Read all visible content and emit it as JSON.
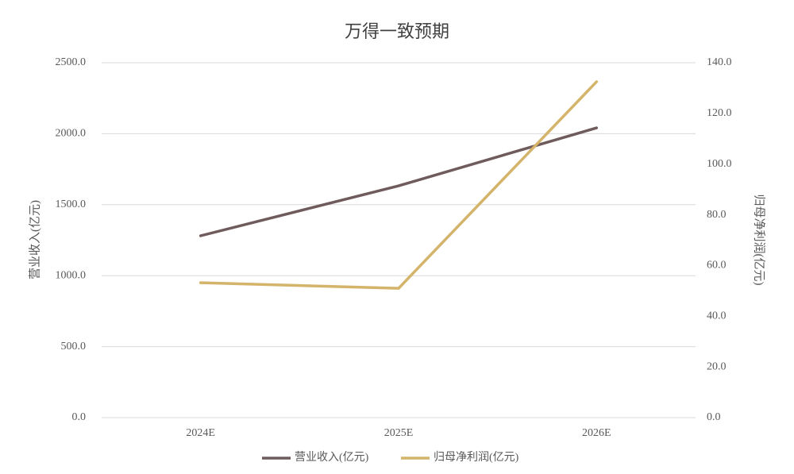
{
  "chart_data": {
    "type": "line",
    "title": "万得一致预期",
    "categories": [
      "2024E",
      "2025E",
      "2026E"
    ],
    "series": [
      {
        "name": "营业收入(亿元)",
        "color": "#6f5b5b",
        "values": [
          1281,
          1633,
          2041
        ]
      },
      {
        "name": "归母净利润(亿元)",
        "color": "#d4b36a",
        "axis": "y2",
        "values": [
          53.2,
          51.0,
          132.5
        ]
      }
    ],
    "y_label": "营业收入(亿元)",
    "y2_label": "归母净利润(亿元)",
    "ylim": [
      0,
      2500
    ],
    "yticks": [
      {
        "value": 0,
        "label": "0.0"
      },
      {
        "value": 500,
        "label": "500.0"
      },
      {
        "value": 1000,
        "label": "1000.0"
      },
      {
        "value": 1500,
        "label": "1500.0"
      },
      {
        "value": 2000,
        "label": "2000.0"
      },
      {
        "value": 2500,
        "label": "2500.0"
      }
    ],
    "y2lim": [
      0,
      140
    ],
    "y2ticks": [
      {
        "value": 0,
        "label": "0.0"
      },
      {
        "value": 20,
        "label": "20.0"
      },
      {
        "value": 40,
        "label": "40.0"
      },
      {
        "value": 60,
        "label": "60.0"
      },
      {
        "value": 80,
        "label": "80.0"
      },
      {
        "value": 100,
        "label": "100.0"
      },
      {
        "value": 120,
        "label": "120.0"
      },
      {
        "value": 140,
        "label": "140.0"
      }
    ],
    "grid": true,
    "legend": "bottom"
  }
}
